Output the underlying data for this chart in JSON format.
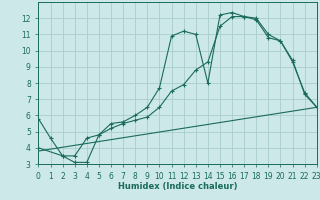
{
  "xlabel": "Humidex (Indice chaleur)",
  "bg_color": "#cce8e8",
  "grid_color": "#aacccc",
  "line_color": "#1a6b5a",
  "xlim": [
    0,
    23
  ],
  "ylim": [
    3,
    13
  ],
  "xticks": [
    0,
    1,
    2,
    3,
    4,
    5,
    6,
    7,
    8,
    9,
    10,
    11,
    12,
    13,
    14,
    15,
    16,
    17,
    18,
    19,
    20,
    21,
    22,
    23
  ],
  "yticks": [
    3,
    4,
    5,
    6,
    7,
    8,
    9,
    10,
    11,
    12
  ],
  "line1_x": [
    0,
    1,
    2,
    3,
    4,
    5,
    6,
    7,
    8,
    9,
    10,
    11,
    12,
    13,
    14,
    15,
    16,
    17,
    18,
    19,
    20,
    21,
    22,
    23
  ],
  "line1_y": [
    5.8,
    4.6,
    3.5,
    3.1,
    3.1,
    4.8,
    5.5,
    5.6,
    6.0,
    6.5,
    7.7,
    10.9,
    11.2,
    11.0,
    8.0,
    12.2,
    12.35,
    12.1,
    11.9,
    10.8,
    10.6,
    9.4,
    7.3,
    6.5
  ],
  "line2_x": [
    0,
    2,
    3,
    4,
    5,
    6,
    7,
    8,
    9,
    10,
    11,
    12,
    13,
    14,
    15,
    16,
    17,
    18,
    19,
    20,
    21,
    22,
    23
  ],
  "line2_y": [
    4.0,
    3.5,
    3.5,
    4.6,
    4.8,
    5.2,
    5.5,
    5.7,
    5.9,
    6.5,
    7.5,
    7.9,
    8.8,
    9.3,
    11.5,
    12.1,
    12.1,
    12.0,
    11.0,
    10.6,
    9.3,
    7.4,
    6.5
  ],
  "line3_x": [
    0,
    23
  ],
  "line3_y": [
    3.8,
    6.5
  ]
}
